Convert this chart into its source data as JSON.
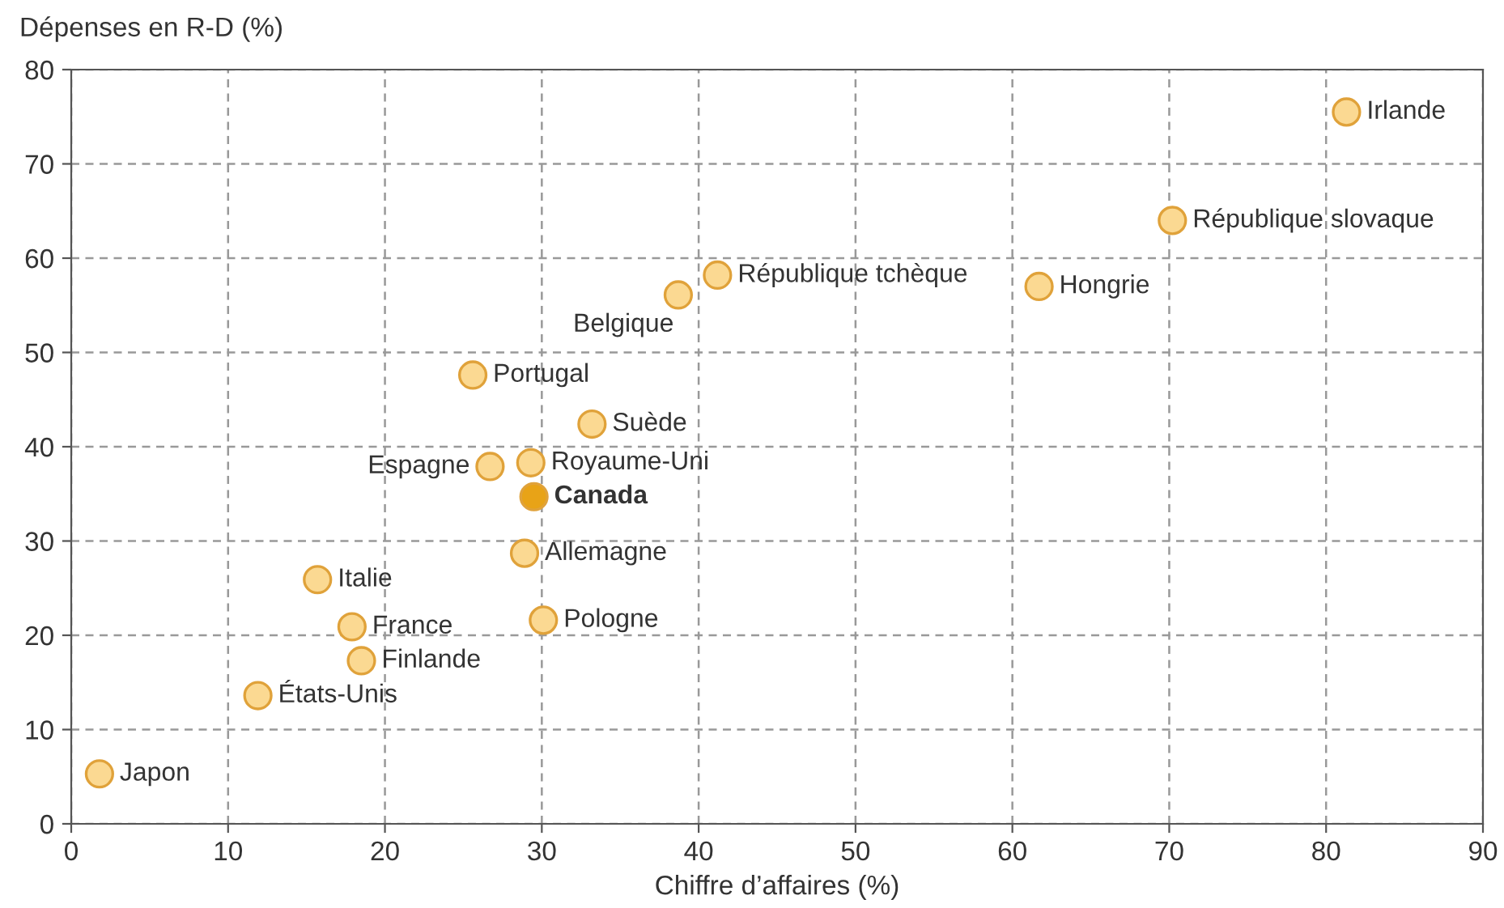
{
  "chart_data": {
    "type": "scatter",
    "xlabel": "Chiffre d’affaires (%)",
    "ylabel": "Dépenses en R-D (%)",
    "xlim": [
      0,
      90
    ],
    "xticks": [
      0,
      10,
      20,
      30,
      40,
      50,
      60,
      70,
      80,
      90
    ],
    "ylim": [
      0,
      80
    ],
    "yticks": [
      0,
      10,
      20,
      30,
      40,
      50,
      60,
      70,
      80
    ],
    "grid": true,
    "marker": "circle",
    "series": [
      {
        "color": "#fbd992",
        "x": [
          81.3,
          70.2,
          41.2,
          38.7,
          61.7,
          25.6,
          33.2,
          26.7,
          29.3,
          28.9,
          15.7,
          30.1,
          17.9,
          18.5,
          11.9,
          1.8
        ],
        "values": [
          75.5,
          64.0,
          58.2,
          56.1,
          57.0,
          47.6,
          42.4,
          37.9,
          38.3,
          28.7,
          25.9,
          21.6,
          20.9,
          17.3,
          13.6,
          5.3
        ]
      },
      {
        "name": "Canada",
        "color": "#e8a317",
        "x": [
          29.5
        ],
        "values": [
          34.7
        ]
      }
    ],
    "annotations": [
      {
        "text": "Irlande",
        "x": 81.3,
        "y": 75.5
      },
      {
        "text": "République slovaque",
        "x": 70.2,
        "y": 64.0
      },
      {
        "text": "République tchèque",
        "x": 41.2,
        "y": 58.2
      },
      {
        "text": "Belgique",
        "x": 38.7,
        "y": 56.1
      },
      {
        "text": "Hongrie",
        "x": 61.7,
        "y": 57.0
      },
      {
        "text": "Portugal",
        "x": 25.6,
        "y": 47.6
      },
      {
        "text": "Suède",
        "x": 33.2,
        "y": 42.4
      },
      {
        "text": "Espagne",
        "x": 26.7,
        "y": 37.9
      },
      {
        "text": "Royaume-Uni",
        "x": 29.3,
        "y": 38.3
      },
      {
        "text": "Allemagne",
        "x": 28.9,
        "y": 28.7
      },
      {
        "text": "Italie",
        "x": 15.7,
        "y": 25.9
      },
      {
        "text": "Pologne",
        "x": 30.1,
        "y": 21.6
      },
      {
        "text": "France",
        "x": 17.9,
        "y": 20.9
      },
      {
        "text": "Finlande",
        "x": 18.5,
        "y": 17.3
      },
      {
        "text": "États-Unis",
        "x": 11.9,
        "y": 13.6
      },
      {
        "text": "Japon",
        "x": 1.8,
        "y": 5.3
      }
    ]
  }
}
